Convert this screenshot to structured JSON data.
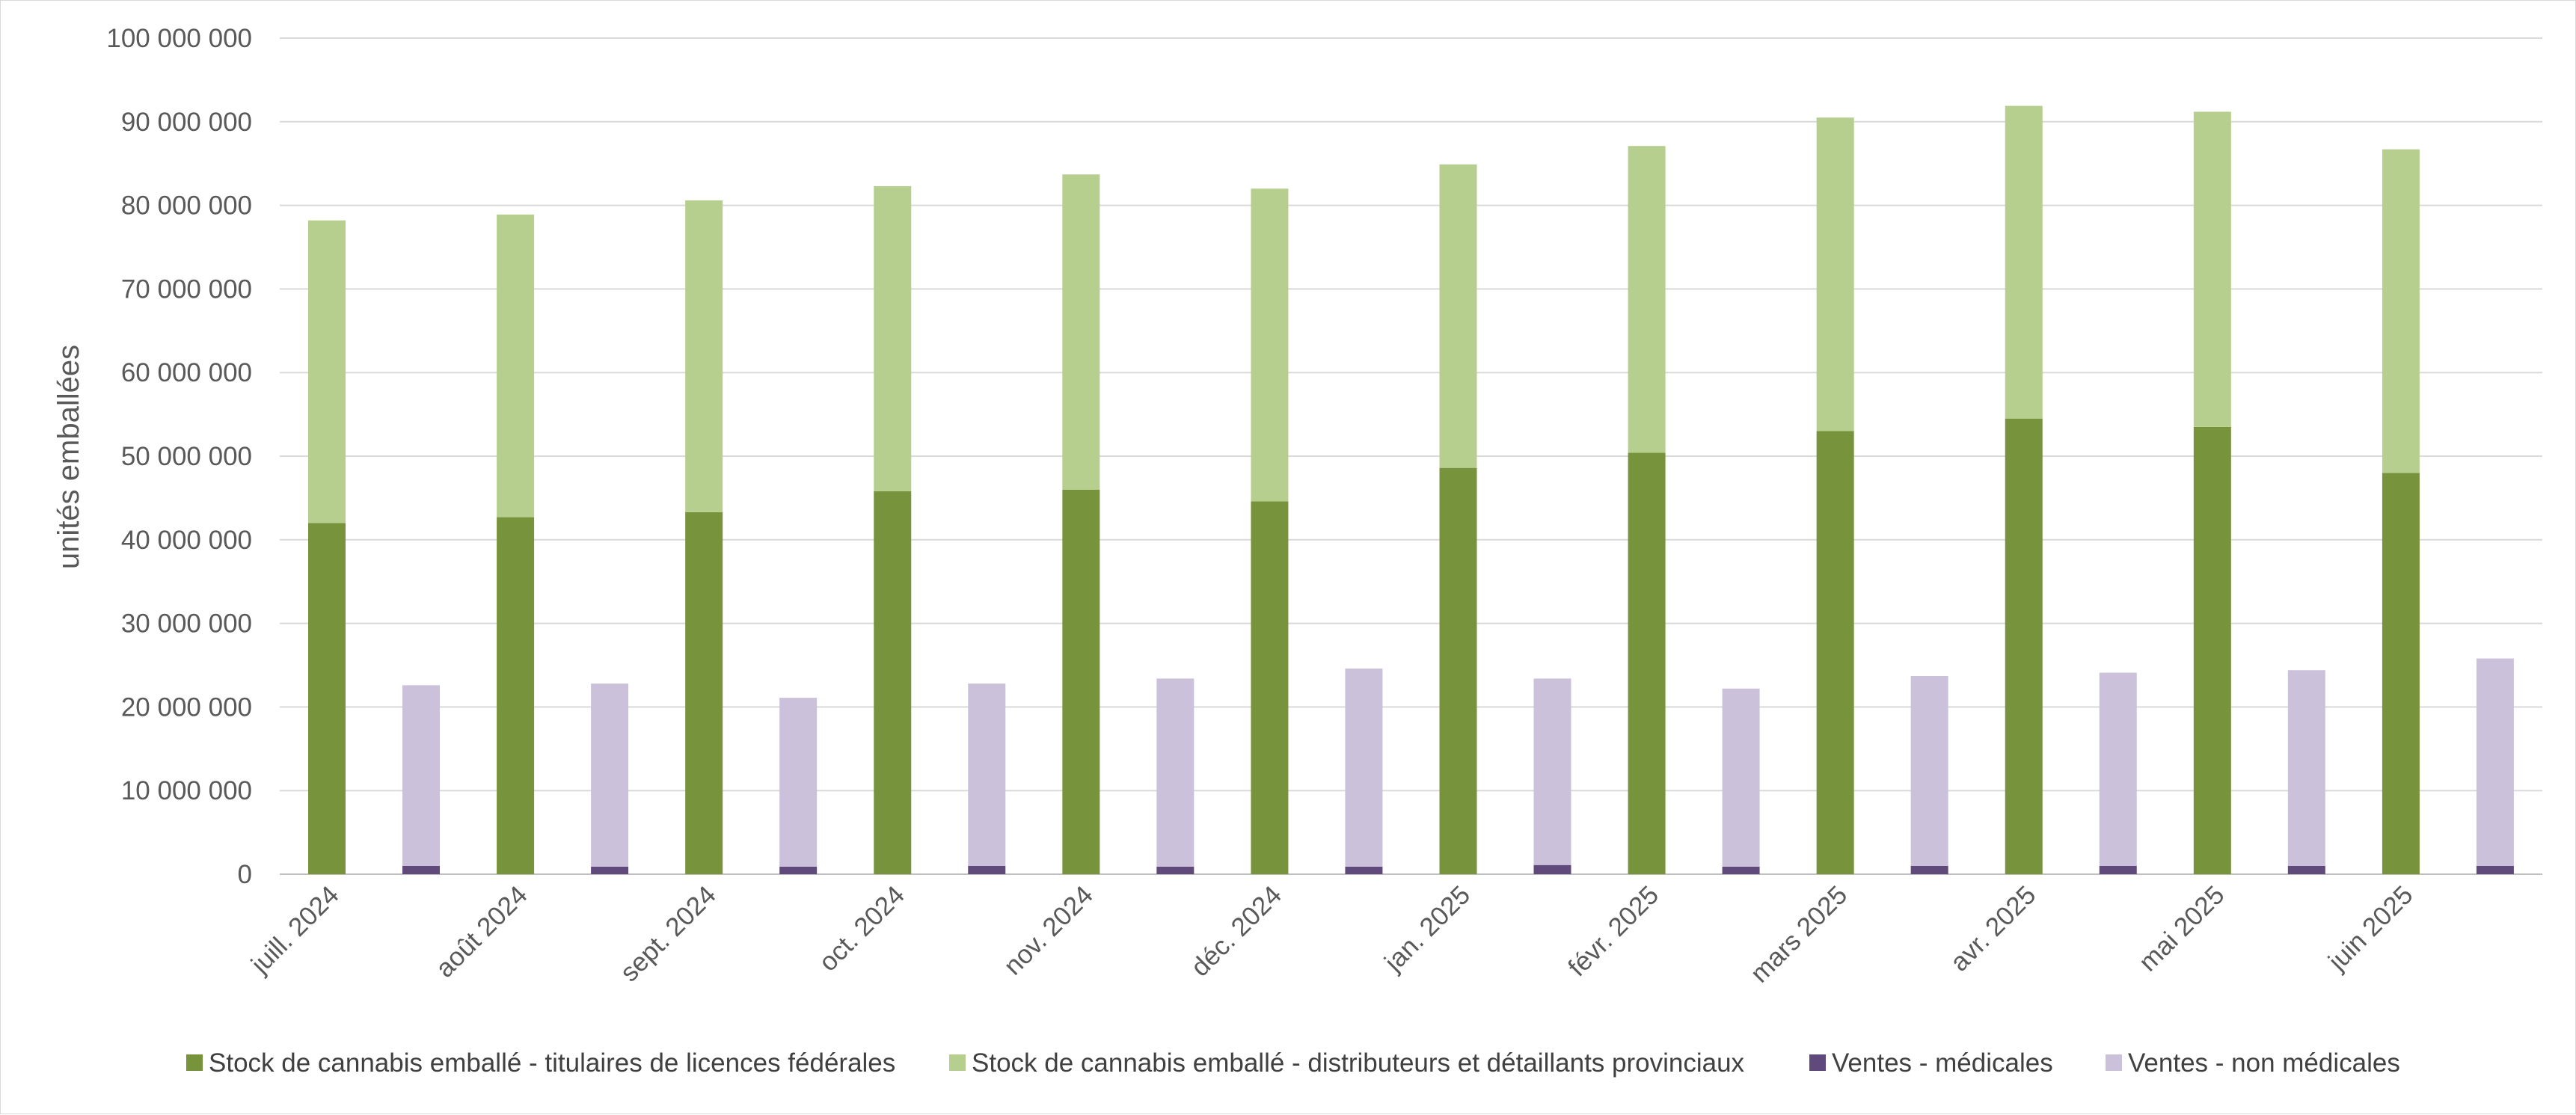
{
  "chart_data": {
    "type": "bar",
    "stacked": true,
    "title": "",
    "xlabel": "",
    "ylabel": "unités emballées",
    "ylim": [
      0,
      100000000
    ],
    "ytick_step": 10000000,
    "grid": true,
    "legend_position": "bottom",
    "categories": [
      "juill. 2024",
      "août 2024",
      "sept. 2024",
      "oct. 2024",
      "nov. 2024",
      "déc. 2024",
      "jan. 2025",
      "févr. 2025",
      "mars 2025",
      "avr. 2025",
      "mai 2025",
      "juin 2025"
    ],
    "stock_series": [
      {
        "name": "Stock de cannabis emballé - titulaires de licences fédérales",
        "color": "#77933c",
        "values": [
          42000000,
          42700000,
          43300000,
          45800000,
          46000000,
          44600000,
          48600000,
          50400000,
          53000000,
          54500000,
          53500000,
          48000000
        ]
      },
      {
        "name": "Stock de cannabis emballé - distributeurs et détaillants provinciaux",
        "color": "#b7cf8e",
        "values": [
          36200000,
          36200000,
          37300000,
          36500000,
          37700000,
          37400000,
          36300000,
          36700000,
          37500000,
          37400000,
          37700000,
          38700000
        ]
      }
    ],
    "sales_series": [
      {
        "name": "Ventes - médicales",
        "color": "#604a7b",
        "values": [
          1000000,
          900000,
          900000,
          1000000,
          900000,
          900000,
          1100000,
          900000,
          1000000,
          1000000,
          1000000,
          1000000
        ]
      },
      {
        "name": "Ventes - non médicales",
        "color": "#ccc1da",
        "values": [
          21600000,
          21900000,
          20200000,
          21800000,
          22500000,
          23700000,
          22300000,
          21300000,
          22700000,
          23100000,
          23400000,
          24800000
        ]
      }
    ],
    "ytick_labels": [
      "0",
      "10 000 000",
      "20 000 000",
      "30 000 000",
      "40 000 000",
      "50 000 000",
      "60 000 000",
      "70 000 000",
      "80 000 000",
      "90 000 000",
      "100 000 000"
    ]
  }
}
